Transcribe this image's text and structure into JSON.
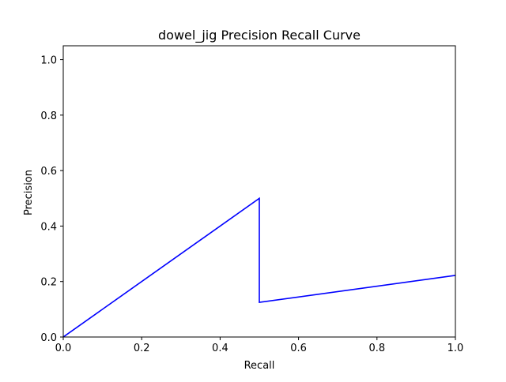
{
  "chart_data": {
    "type": "line",
    "title": "dowel_jig Precision Recall Curve",
    "xlabel": "Recall",
    "ylabel": "Precision",
    "xlim": [
      0.0,
      1.0
    ],
    "ylim": [
      0.0,
      1.05
    ],
    "x_ticks": [
      "0.0",
      "0.2",
      "0.4",
      "0.6",
      "0.8",
      "1.0"
    ],
    "y_ticks": [
      "0.0",
      "0.2",
      "0.4",
      "0.6",
      "0.8",
      "1.0"
    ],
    "grid": false,
    "legend": "none",
    "series": [
      {
        "color": "#0000ff",
        "x": [
          0.0,
          0.5,
          0.5,
          1.0
        ],
        "y": [
          0.0,
          0.5,
          0.125,
          0.222
        ]
      }
    ]
  }
}
